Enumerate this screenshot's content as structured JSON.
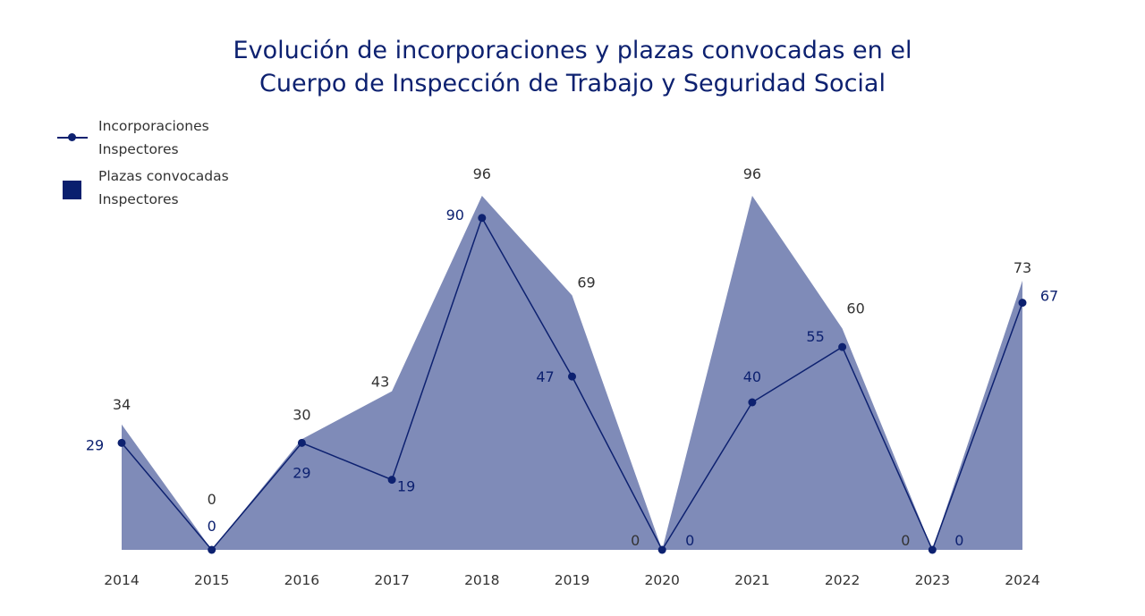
{
  "chart_data": {
    "type": "area",
    "title": "Evolución de incorporaciones y plazas convocadas en el Cuerpo de Inspección de Trabajo y Seguridad Social",
    "title_lines": [
      "Evolución de incorporaciones y plazas convocadas en el",
      "Cuerpo de Inspección de Trabajo y Seguridad Social"
    ],
    "categories": [
      "2014",
      "2015",
      "2016",
      "2017",
      "2018",
      "2019",
      "2020",
      "2021",
      "2022",
      "2023",
      "2024"
    ],
    "series": [
      {
        "name": "Plazas convocadas Inspectores",
        "name_lines": [
          "Plazas convocadas",
          "Inspectores"
        ],
        "type": "area",
        "color": "#7f8bb8",
        "label_color": "#333333",
        "values": [
          34,
          0,
          30,
          43,
          96,
          69,
          0,
          96,
          60,
          0,
          73
        ]
      },
      {
        "name": "Incorporaciones Inspectores",
        "name_lines": [
          "Incorporaciones",
          "Inspectores"
        ],
        "type": "line",
        "color": "#0d2170",
        "label_color": "#0d2170",
        "values": [
          29,
          0,
          29,
          19,
          90,
          47,
          0,
          40,
          55,
          0,
          67
        ]
      }
    ],
    "ylim": [
      0,
      96
    ],
    "grid": false,
    "legend": "top-left",
    "xlabel": "",
    "ylabel": ""
  }
}
